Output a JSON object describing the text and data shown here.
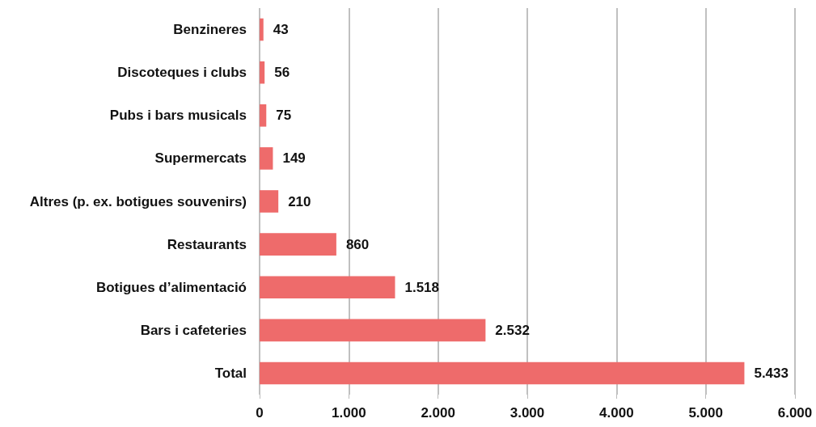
{
  "chart_data": {
    "type": "bar",
    "orientation": "horizontal",
    "categories": [
      "Benzineres",
      "Discoteques i clubs",
      "Pubs i bars musicals",
      "Supermercats",
      "Altres (p. ex. botigues souvenirs)",
      "Restaurants",
      "Botigues d’alimentació",
      "Bars i cafeteries",
      "Total"
    ],
    "values": [
      43,
      56,
      75,
      149,
      210,
      860,
      1518,
      2532,
      5433
    ],
    "value_labels": [
      "43",
      "56",
      "75",
      "149",
      "210",
      "860",
      "1.518",
      "2.532",
      "5.433"
    ],
    "color": "#ee6b6b",
    "xlim": [
      0,
      6000
    ],
    "xticks": [
      0,
      {
        "value": 1000,
        "label": "1.000"
      },
      {
        "value": 2000,
        "label": "2.000"
      },
      {
        "value": 3000,
        "label": "3.000"
      },
      {
        "value": 4000,
        "label": "4.000"
      },
      {
        "value": 5000,
        "label": "5.000"
      },
      {
        "value": 6000,
        "label": "6.000"
      }
    ],
    "grid": "x"
  }
}
